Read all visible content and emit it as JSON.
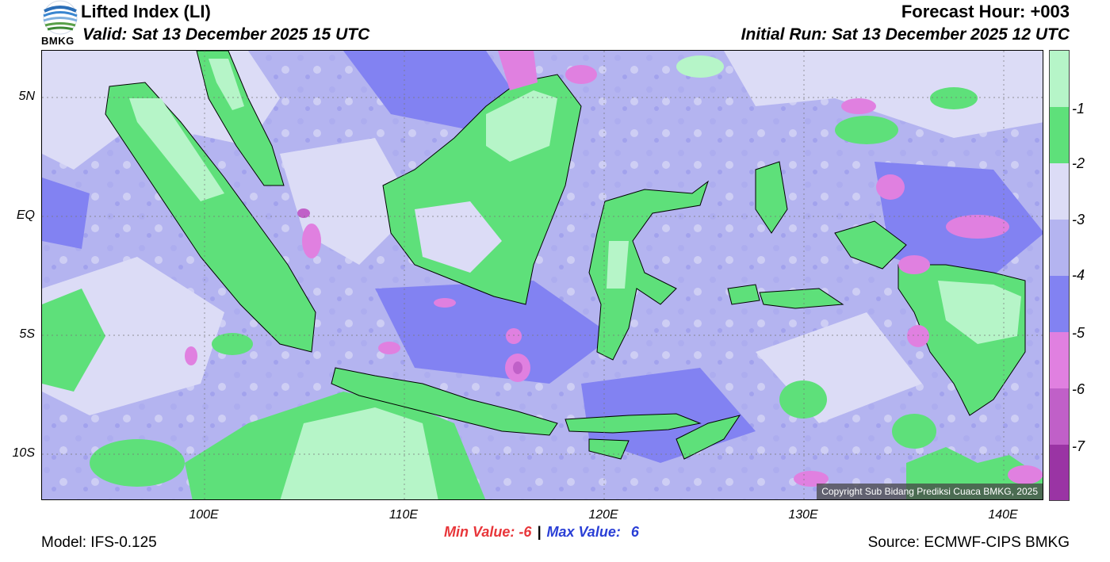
{
  "header": {
    "title": "Lifted Index (LI)",
    "valid": "Valid: Sat 13 December 2025 15 UTC",
    "forecast_hour": "Forecast Hour: +003",
    "initial_run": "Initial Run: Sat 13 December 2025 12 UTC"
  },
  "logo": {
    "text": "BMKG"
  },
  "axes": {
    "lat_labels": [
      "5N",
      "EQ",
      "5S",
      "10S"
    ],
    "lon_labels": [
      "100E",
      "110E",
      "120E",
      "130E",
      "140E"
    ]
  },
  "colorbar": {
    "labels": [
      "-1",
      "-2",
      "-3",
      "-4",
      "-5",
      "-6",
      "-7"
    ],
    "colors": [
      "#b6f5c8",
      "#5ee07a",
      "#dcdcf6",
      "#b4b4f0",
      "#8282f2",
      "#e080e0",
      "#c060c8",
      "#9a34a4"
    ]
  },
  "stats": {
    "min_label": "Min Value:",
    "min_value": "-6",
    "separator": "|",
    "max_label": "Max Value:",
    "max_value": "6"
  },
  "footer": {
    "model": "Model: IFS-0.125",
    "source": "Source: ECMWF-CIPS BMKG",
    "copyright": "Copyright Sub Bidang Prediksi Cuaca BMKG, 2025"
  }
}
